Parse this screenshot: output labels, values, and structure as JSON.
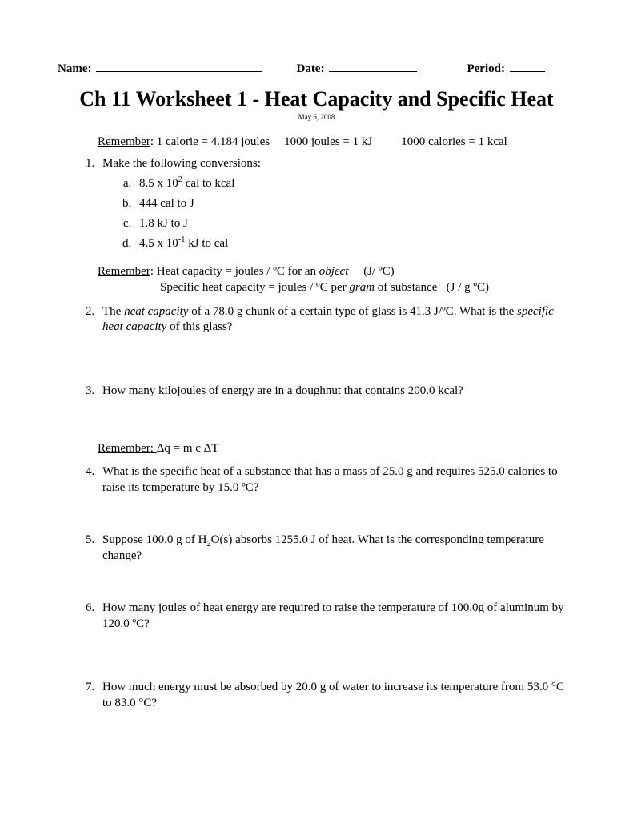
{
  "header": {
    "name_label": "Name:",
    "date_label": "Date:",
    "period_label": "Period:"
  },
  "title": "Ch 11 Worksheet 1 - Heat Capacity and Specific Heat",
  "date_small": "May 6, 2008",
  "remember1": {
    "label": "Remember",
    "part1": ": 1 calorie = 4.184 joules",
    "part2": "1000 joules = 1 kJ",
    "part3": "1000 calories = 1 kcal"
  },
  "q1": {
    "text": "Make the following conversions:",
    "a_pre": "8.5 x 10",
    "a_sup": "2",
    "a_post": " cal to kcal",
    "b": "444 cal to J",
    "c": "1.8 kJ to J",
    "d_pre": "4.5 x 10",
    "d_sup": "-1",
    "d_post": " kJ to cal"
  },
  "remember2": {
    "label": "Remember",
    "line1a": ": Heat capacity = joules / ºC for an ",
    "line1b": "object",
    "line1c": "     (J/ ºC)",
    "line2a": "Specific heat capacity = joules /  ºC  per ",
    "line2b": "gram",
    "line2c": " of substance   (J / g ºC)"
  },
  "q2a": "The ",
  "q2b": "heat capacity",
  "q2c": " of a 78.0 g chunk of a certain type of glass is 41.3 J/ºC. What is the ",
  "q2d": "specific heat capacity",
  "q2e": " of this glass?",
  "q3": "How many kilojoules of energy are in a doughnut that contains 200.0 kcal?",
  "remember3": {
    "label": "Remember: ",
    "text": " Δq = m c ΔT"
  },
  "q4": "What is the specific heat of a substance that has a mass of 25.0 g and requires 525.0 calories to raise its temperature by 15.0 ºC?",
  "q5a": "Suppose 100.0 g of H",
  "q5b": "2",
  "q5c": "O(s) absorbs 1255.0 J of heat. What is the corresponding temperature change?",
  "q6": "How many joules of heat energy are required to raise the temperature of 100.0g of aluminum by 120.0 ºC?",
  "q7": "How much energy must be absorbed by 20.0 g of water to increase its temperature from 53.0 °C to 83.0 °C?"
}
